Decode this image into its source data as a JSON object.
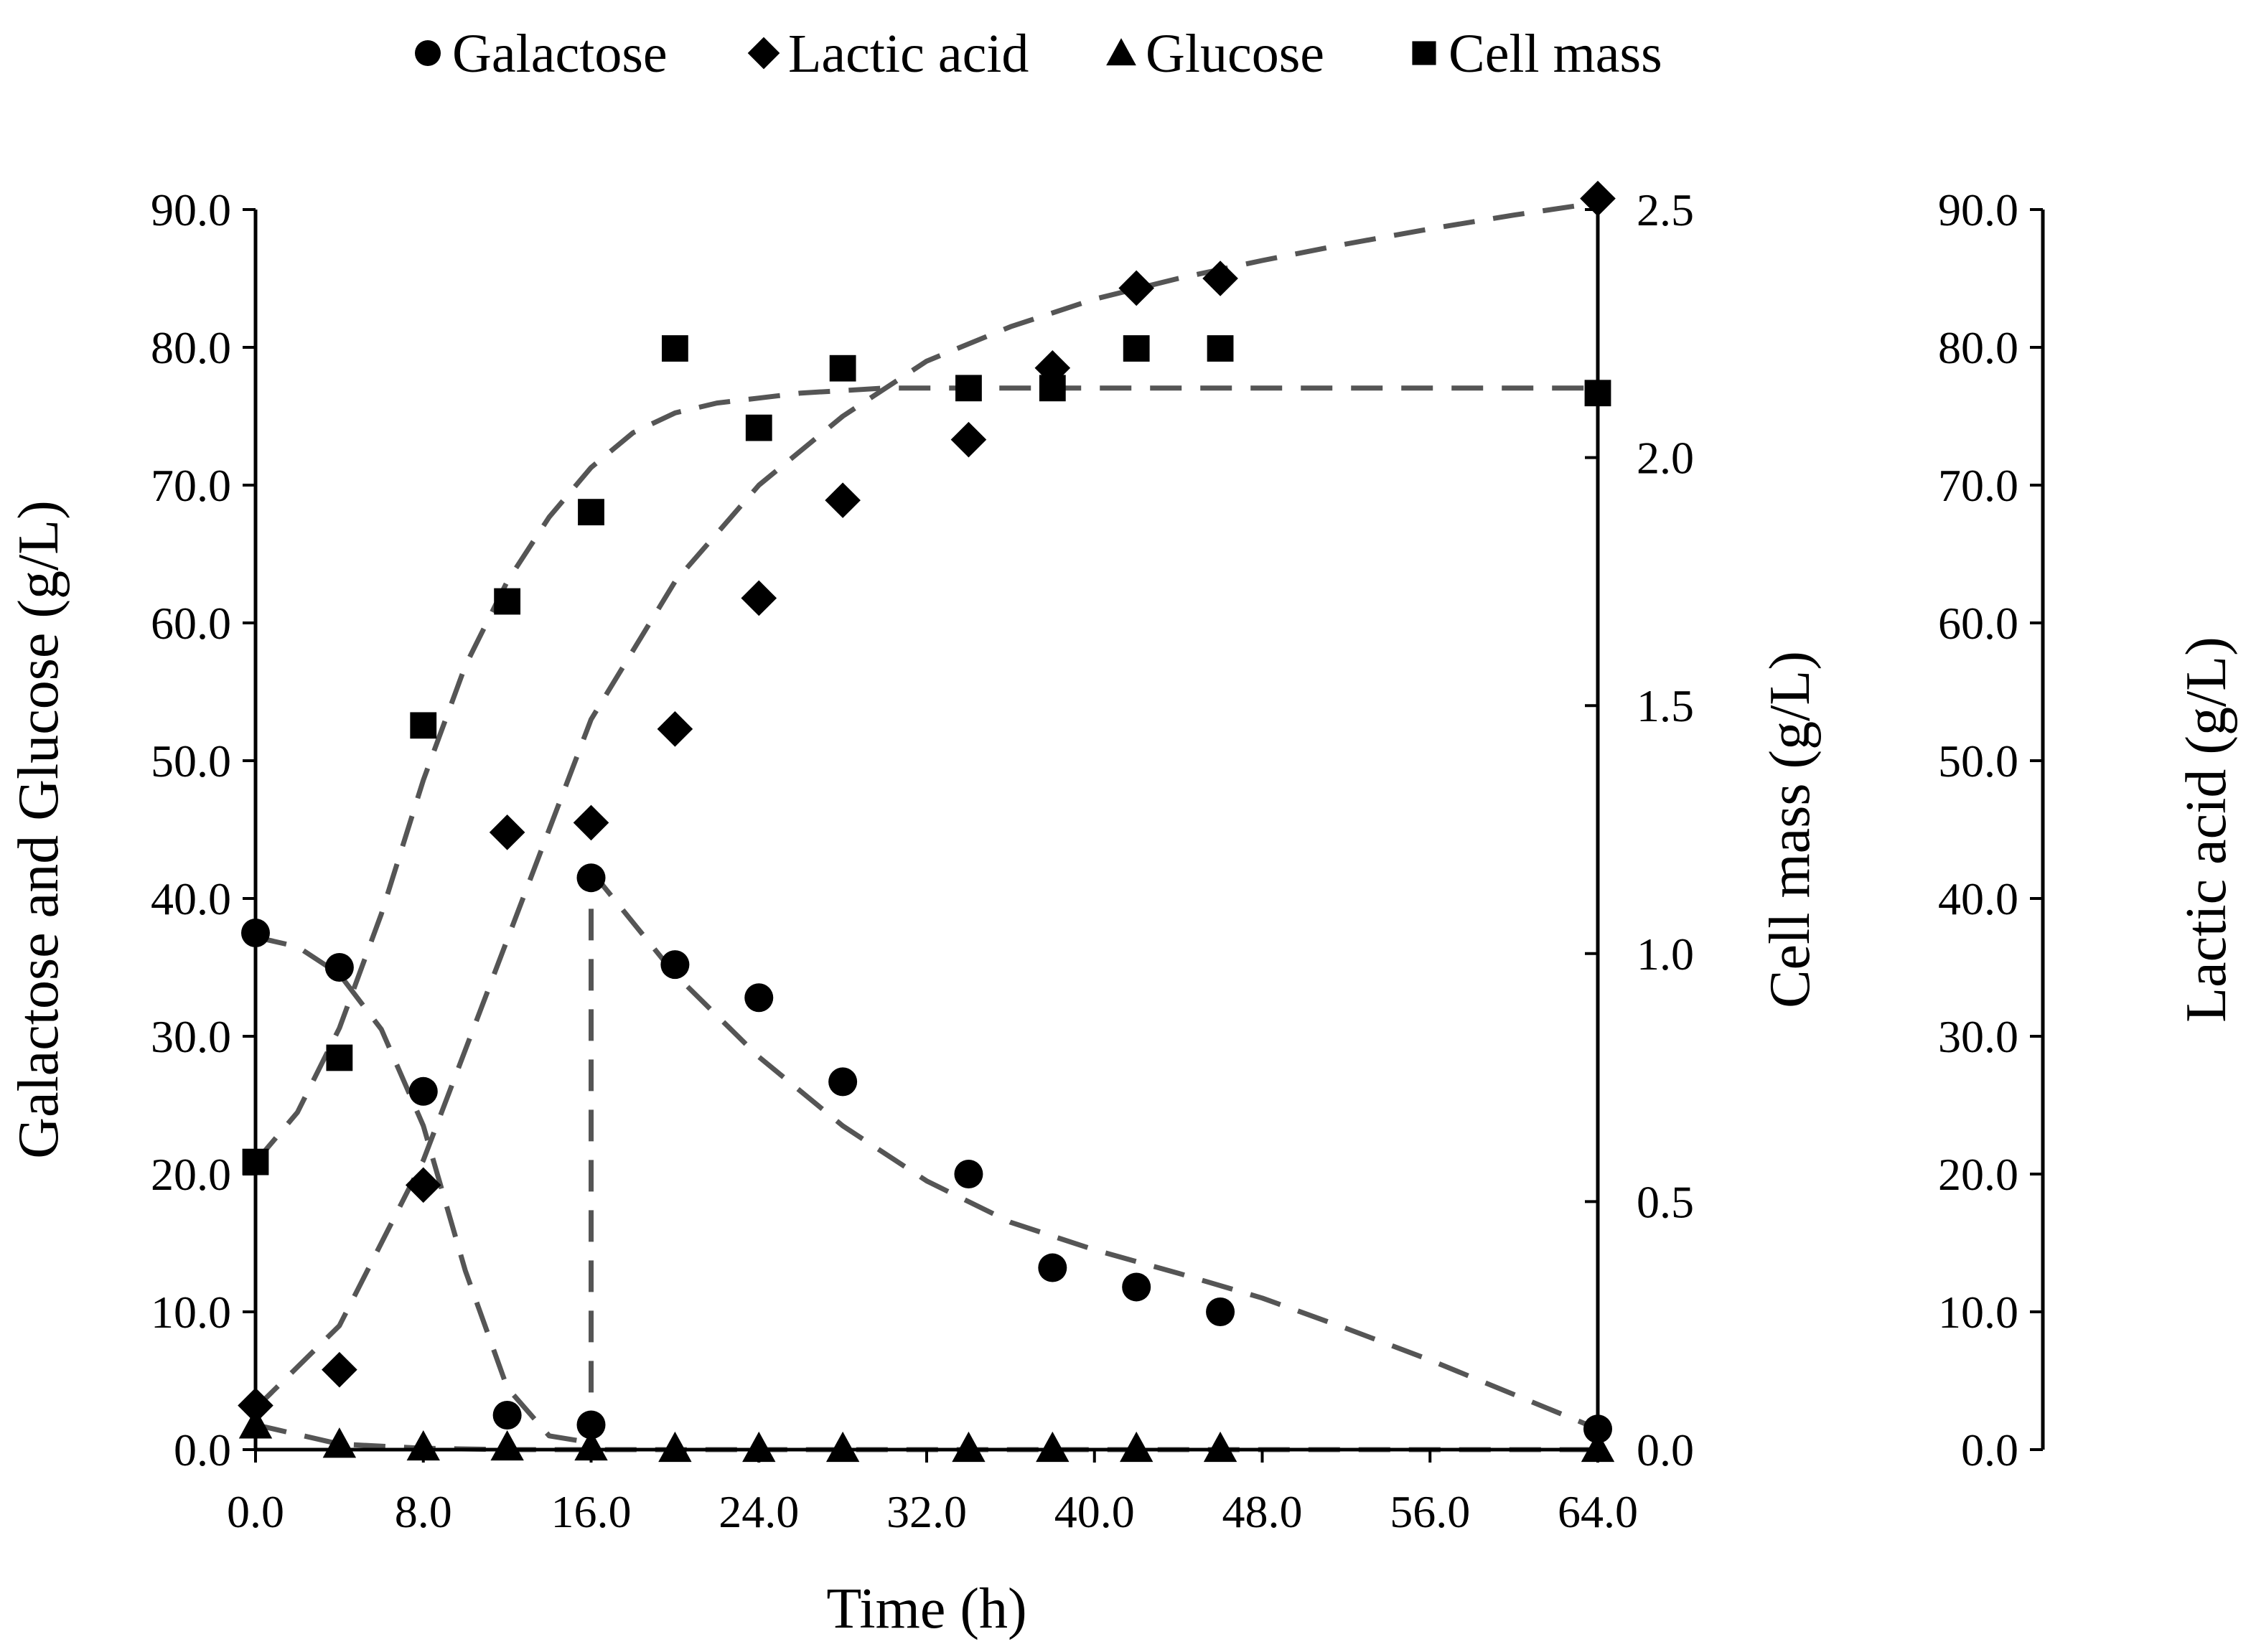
{
  "chart_data": {
    "type": "scatter",
    "title": "",
    "legend": {
      "position": "top-center",
      "entries": [
        {
          "label": "Galactose",
          "marker": "circle"
        },
        {
          "label": "Lactic acid",
          "marker": "diamond"
        },
        {
          "label": "Glucose",
          "marker": "triangle"
        },
        {
          "label": "Cell mass",
          "marker": "square"
        }
      ]
    },
    "axes": {
      "x": {
        "label": "Time (h)",
        "min": 0,
        "max": 64,
        "ticks": [
          "0.0",
          "8.0",
          "16.0",
          "24.0",
          "32.0",
          "40.0",
          "48.0",
          "56.0",
          "64.0"
        ]
      },
      "y_left": {
        "label": "Galactose and Glucose (g/L)",
        "min": 0,
        "max": 90,
        "ticks": [
          "0.0",
          "10.0",
          "20.0",
          "30.0",
          "40.0",
          "50.0",
          "60.0",
          "70.0",
          "80.0",
          "90.0"
        ]
      },
      "y_mid": {
        "label": "Cell mass (g/L)",
        "min": 0,
        "max": 2.5,
        "ticks": [
          "0.0",
          "0.5",
          "1.0",
          "1.5",
          "2.0",
          "2.5"
        ]
      },
      "y_right": {
        "label": "Lactic acid (g/L)",
        "min": 0,
        "max": 90,
        "ticks": [
          "0.0",
          "10.0",
          "20.0",
          "30.0",
          "40.0",
          "50.0",
          "60.0",
          "70.0",
          "80.0",
          "90.0"
        ]
      }
    },
    "series": [
      {
        "name": "Galactose",
        "axis": "y_left",
        "marker": "circle",
        "x": [
          0,
          4,
          8,
          12,
          16,
          16,
          20,
          24,
          28,
          34,
          38,
          42,
          46,
          64
        ],
        "y": [
          37.5,
          35.0,
          26.0,
          2.5,
          1.8,
          41.5,
          35.2,
          32.8,
          26.7,
          20.0,
          13.2,
          11.8,
          10.0,
          1.5
        ]
      },
      {
        "name": "Lactic acid",
        "axis": "y_right",
        "marker": "diamond",
        "x": [
          0,
          4,
          8,
          12,
          16,
          20,
          24,
          28,
          34,
          38,
          42,
          46,
          64
        ],
        "y": [
          3.2,
          5.8,
          19.2,
          44.8,
          45.5,
          52.3,
          61.8,
          68.9,
          73.3,
          78.5,
          84.3,
          85.0,
          90.8
        ]
      },
      {
        "name": "Glucose",
        "axis": "y_left",
        "marker": "triangle",
        "x": [
          0,
          4,
          8,
          12,
          16,
          20,
          24,
          28,
          34,
          38,
          42,
          46,
          64
        ],
        "y": [
          1.8,
          0.4,
          0.2,
          0.2,
          0.2,
          0.1,
          0.1,
          0.1,
          0.1,
          0.1,
          0.1,
          0.1,
          0.1
        ]
      },
      {
        "name": "Cell mass",
        "axis": "y_mid",
        "marker": "square",
        "x": [
          0,
          4,
          8,
          12,
          16,
          20,
          24,
          28,
          34,
          38,
          42,
          46,
          64
        ],
        "y": [
          0.58,
          0.79,
          1.46,
          1.71,
          1.89,
          2.22,
          2.06,
          2.18,
          2.14,
          2.14,
          2.22,
          2.22,
          2.13
        ]
      }
    ],
    "fit_curves": [
      {
        "name": "Galactose fit phase 1",
        "axis": "y_left",
        "x": [
          0,
          2,
          4,
          6,
          8,
          10,
          12,
          14,
          16
        ],
        "y": [
          37.2,
          36.5,
          34.5,
          30.5,
          23.5,
          13.0,
          4.5,
          1.0,
          0.5
        ]
      },
      {
        "name": "Galactose feed",
        "axis": "y_left",
        "x": [
          16,
          16
        ],
        "y": [
          0.5,
          42.0
        ]
      },
      {
        "name": "Galactose fit phase 2",
        "axis": "y_left",
        "x": [
          16,
          20,
          24,
          28,
          32,
          36,
          40,
          44,
          48,
          52,
          56,
          60,
          64
        ],
        "y": [
          42.0,
          34.5,
          28.5,
          23.5,
          19.5,
          16.5,
          14.5,
          12.8,
          11.0,
          8.8,
          6.5,
          4.0,
          1.5
        ]
      },
      {
        "name": "Lactic acid fit",
        "axis": "y_right",
        "x": [
          0,
          4,
          8,
          12,
          16,
          20,
          24,
          28,
          32,
          36,
          40,
          44,
          48,
          52,
          56,
          60,
          64
        ],
        "y": [
          3.0,
          9.0,
          21.0,
          37.0,
          53.0,
          63.0,
          70.0,
          75.0,
          79.0,
          81.5,
          83.5,
          85.0,
          86.3,
          87.5,
          88.6,
          89.6,
          90.5
        ]
      },
      {
        "name": "Glucose fit",
        "axis": "y_left",
        "x": [
          0,
          4,
          8,
          12,
          16,
          24,
          32,
          40,
          48,
          56,
          64
        ],
        "y": [
          1.8,
          0.4,
          0.1,
          0.0,
          0.0,
          0.0,
          0.0,
          0.0,
          0.0,
          0.0,
          0.0
        ]
      },
      {
        "name": "Cell mass fit",
        "axis": "y_mid",
        "x": [
          0,
          2,
          4,
          6,
          8,
          10,
          12,
          14,
          16,
          18,
          20,
          22,
          24,
          26,
          28,
          30,
          32,
          40,
          48,
          56,
          64
        ],
        "y": [
          0.58,
          0.68,
          0.85,
          1.08,
          1.35,
          1.58,
          1.75,
          1.88,
          1.98,
          2.05,
          2.09,
          2.11,
          2.12,
          2.13,
          2.135,
          2.14,
          2.14,
          2.14,
          2.14,
          2.14,
          2.14
        ]
      }
    ]
  }
}
